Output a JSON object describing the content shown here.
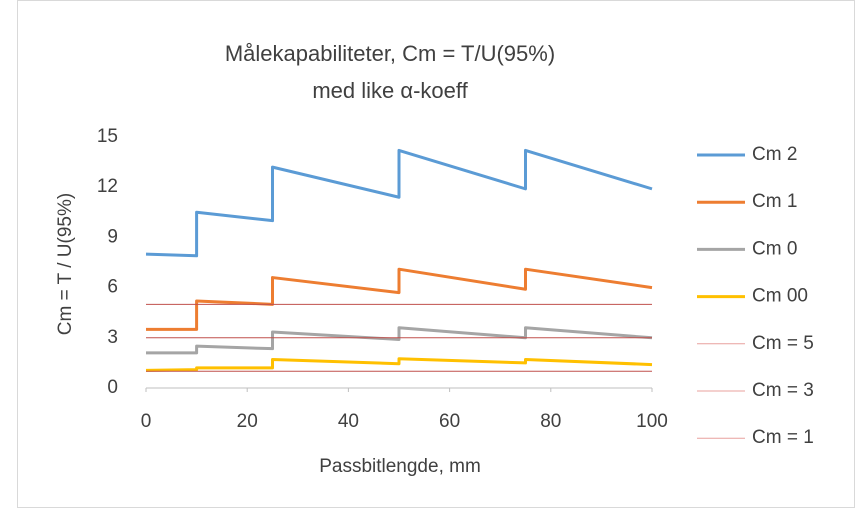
{
  "chart_data": {
    "type": "line",
    "title": [
      "Målekapabiliteter, Cm = T/U(95%)",
      "med like α-koeff"
    ],
    "x_label": "Passbitlengde, mm",
    "y_label": "Cm = T / U(95%)",
    "xlim": [
      0,
      100
    ],
    "xticks": [
      0,
      20,
      40,
      60,
      80,
      100
    ],
    "ylim": [
      0,
      15
    ],
    "yticks": [
      0,
      3,
      6,
      9,
      12,
      15
    ],
    "grid": false,
    "legend": "right",
    "series": [
      {
        "name": "Cm 2",
        "color": "#5b9bd5",
        "width": 3,
        "x": [
          0,
          10,
          10,
          25,
          25,
          50,
          50,
          75,
          75,
          100
        ],
        "values": [
          8.0,
          7.9,
          10.5,
          10.0,
          13.2,
          11.4,
          14.2,
          11.9,
          14.2,
          11.9
        ]
      },
      {
        "name": "Cm 1",
        "color": "#ed7d31",
        "width": 3,
        "x": [
          0,
          10,
          10,
          25,
          25,
          50,
          50,
          75,
          75,
          100
        ],
        "values": [
          3.5,
          3.5,
          5.2,
          5.0,
          6.6,
          5.7,
          7.1,
          5.9,
          7.1,
          6.0
        ]
      },
      {
        "name": "Cm 0",
        "color": "#a5a5a5",
        "width": 3,
        "x": [
          0,
          10,
          10,
          25,
          25,
          50,
          50,
          75,
          75,
          100
        ],
        "values": [
          2.1,
          2.1,
          2.5,
          2.35,
          3.35,
          2.9,
          3.6,
          3.0,
          3.6,
          3.0
        ]
      },
      {
        "name": "Cm 00",
        "color": "#ffc000",
        "width": 3,
        "x": [
          0,
          10,
          10,
          25,
          25,
          50,
          50,
          75,
          75,
          100
        ],
        "values": [
          1.05,
          1.1,
          1.2,
          1.2,
          1.7,
          1.45,
          1.75,
          1.5,
          1.7,
          1.4
        ]
      },
      {
        "name": "Cm = 5",
        "color": "#c0504d",
        "width": 1,
        "x": [
          0,
          100
        ],
        "values": [
          5,
          5
        ]
      },
      {
        "name": "Cm = 3",
        "color": "#c0504d",
        "width": 1,
        "x": [
          0,
          100
        ],
        "values": [
          3,
          3
        ]
      },
      {
        "name": "Cm = 1",
        "color": "#c0504d",
        "width": 1,
        "x": [
          0,
          100
        ],
        "values": [
          1,
          1
        ]
      }
    ]
  }
}
